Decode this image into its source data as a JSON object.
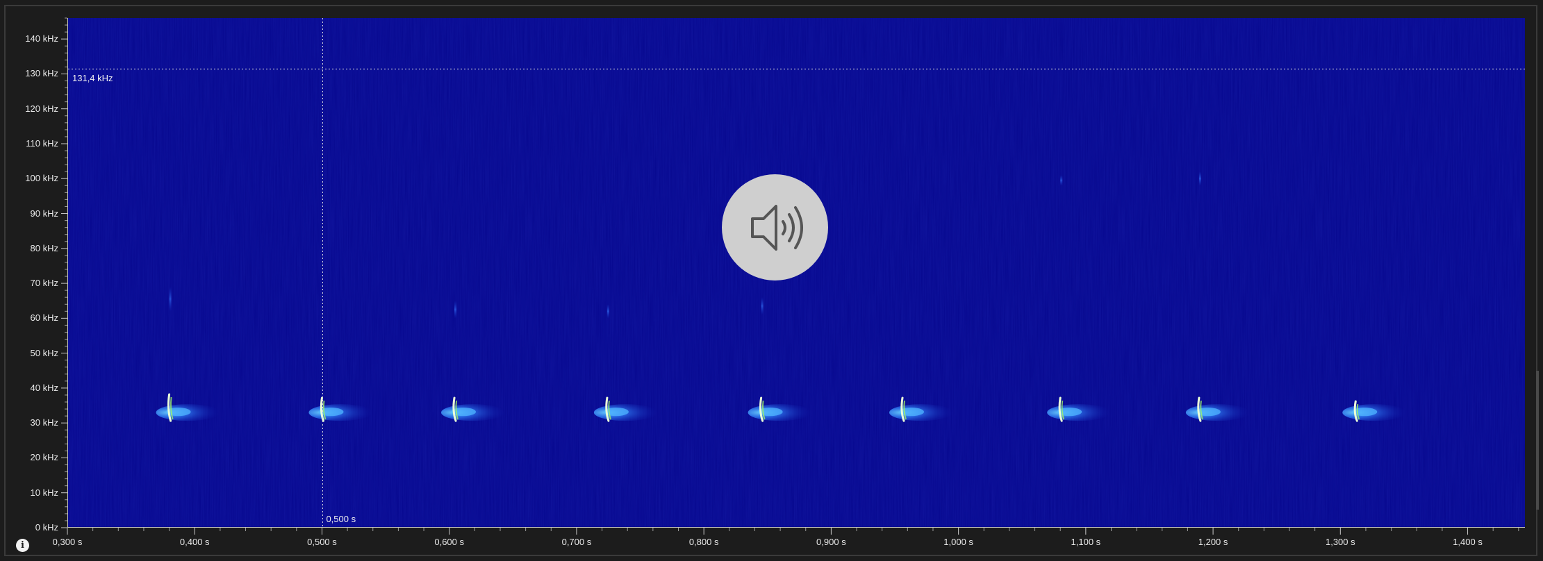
{
  "spectrogram": {
    "background_color": "#06078e",
    "y_axis": {
      "unit": "kHz",
      "range": [
        0,
        146
      ],
      "tick_labels": [
        "0 kHz",
        "10 kHz",
        "20 kHz",
        "30 kHz",
        "40 kHz",
        "50 kHz",
        "60 kHz",
        "70 kHz",
        "80 kHz",
        "90 kHz",
        "100 kHz",
        "110 kHz",
        "120 kHz",
        "130 kHz",
        "140 kHz"
      ],
      "tick_values": [
        0,
        10,
        20,
        30,
        40,
        50,
        60,
        70,
        80,
        90,
        100,
        110,
        120,
        130,
        140
      ]
    },
    "x_axis": {
      "unit": "s",
      "range": [
        0.3,
        1.445
      ],
      "tick_labels": [
        "0,300 s",
        "0,400 s",
        "0,500 s",
        "0,600 s",
        "0,700 s",
        "0,800 s",
        "0,900 s",
        "1,000 s",
        "1,100 s",
        "1,200 s",
        "1,300 s",
        "1,400 s"
      ],
      "tick_values": [
        0.3,
        0.4,
        0.5,
        0.6,
        0.7,
        0.8,
        0.9,
        1.0,
        1.1,
        1.2,
        1.3,
        1.4
      ]
    },
    "cursor": {
      "time_label": "0,500 s",
      "time_value": 0.5,
      "frequency_label": "131,4 kHz",
      "frequency_value": 131.4
    },
    "calls": [
      {
        "time": 0.38,
        "freq_start": 37,
        "freq_end": 31,
        "harmonic": [
          69,
          62
        ]
      },
      {
        "time": 0.5,
        "freq_start": 36,
        "freq_end": 31,
        "harmonic": null
      },
      {
        "time": 0.604,
        "freq_start": 36,
        "freq_end": 31,
        "harmonic": [
          65,
          60
        ]
      },
      {
        "time": 0.724,
        "freq_start": 36,
        "freq_end": 31,
        "harmonic": [
          64,
          60
        ]
      },
      {
        "time": 0.845,
        "freq_start": 36,
        "freq_end": 31,
        "harmonic": [
          66,
          61
        ]
      },
      {
        "time": 0.956,
        "freq_start": 36,
        "freq_end": 31,
        "harmonic": null
      },
      {
        "time": 1.08,
        "freq_start": 36,
        "freq_end": 31,
        "harmonic": [
          101,
          98
        ]
      },
      {
        "time": 1.189,
        "freq_start": 36,
        "freq_end": 31,
        "harmonic": [
          102,
          98
        ]
      },
      {
        "time": 1.312,
        "freq_start": 35,
        "freq_end": 31,
        "harmonic": null
      }
    ]
  },
  "icons": {
    "speaker": "speaker-volume-icon",
    "info": "info-icon"
  }
}
